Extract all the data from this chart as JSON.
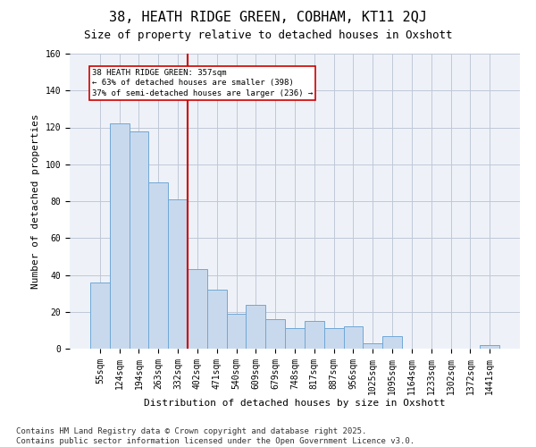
{
  "title": "38, HEATH RIDGE GREEN, COBHAM, KT11 2QJ",
  "subtitle": "Size of property relative to detached houses in Oxshott",
  "xlabel": "Distribution of detached houses by size in Oxshott",
  "ylabel": "Number of detached properties",
  "categories": [
    "55sqm",
    "124sqm",
    "194sqm",
    "263sqm",
    "332sqm",
    "402sqm",
    "471sqm",
    "540sqm",
    "609sqm",
    "679sqm",
    "748sqm",
    "817sqm",
    "887sqm",
    "956sqm",
    "1025sqm",
    "1095sqm",
    "1164sqm",
    "1233sqm",
    "1302sqm",
    "1372sqm",
    "1441sqm"
  ],
  "values": [
    36,
    122,
    118,
    90,
    81,
    43,
    32,
    19,
    24,
    16,
    11,
    15,
    11,
    12,
    3,
    7,
    0,
    0,
    0,
    0,
    2
  ],
  "bar_color": "#c9d9ed",
  "bar_edge_color": "#6fa8d6",
  "grid_color": "#c0c8d8",
  "background_color": "#eef2f8",
  "vline_x_index": 4,
  "vline_color": "#cc0000",
  "annotation_text": "38 HEATH RIDGE GREEN: 357sqm\n← 63% of detached houses are smaller (398)\n37% of semi-detached houses are larger (236) →",
  "annotation_box_color": "#cc0000",
  "footnote": "Contains HM Land Registry data © Crown copyright and database right 2025.\nContains public sector information licensed under the Open Government Licence v3.0.",
  "ylim": [
    0,
    160
  ],
  "yticks": [
    0,
    20,
    40,
    60,
    80,
    100,
    120,
    140,
    160
  ],
  "title_fontsize": 11,
  "subtitle_fontsize": 9,
  "axis_label_fontsize": 8,
  "tick_fontsize": 7,
  "annotation_fontsize": 6.5,
  "footnote_fontsize": 6.5
}
